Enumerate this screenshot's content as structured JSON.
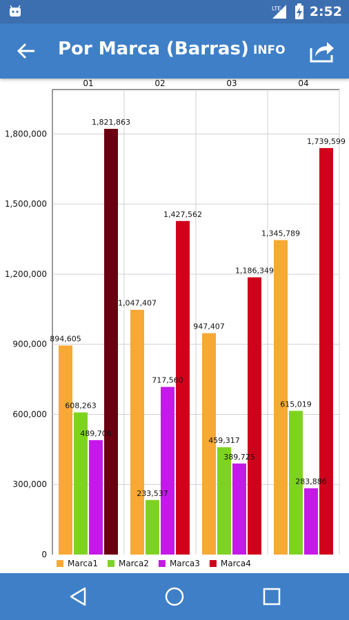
{
  "status_bar": {
    "network": "LTE",
    "time": "2:52"
  },
  "app_bar": {
    "title": "Por Marca (Barras)",
    "info_label": "INFO"
  },
  "colors": {
    "status_bar": "#3c6fb0",
    "app_bar": "#3f7fc7",
    "grid": "#d0d0d0"
  },
  "icons": {
    "back": "arrow-back-icon",
    "share": "share-icon",
    "nav_back": "triangle-back-icon",
    "nav_home": "circle-home-icon",
    "nav_recents": "square-recents-icon"
  },
  "chart_data": {
    "type": "bar",
    "categories": [
      "01",
      "02",
      "03",
      "04"
    ],
    "series": [
      {
        "name": "Marca1",
        "color": "#f7a835",
        "values": [
          894605,
          1047407,
          947407,
          1345789
        ],
        "labels": [
          "894,605",
          "1,047,407",
          "947,407",
          "1,345,789"
        ]
      },
      {
        "name": "Marca2",
        "color": "#7ed321",
        "values": [
          608263,
          233537,
          459317,
          615019
        ],
        "labels": [
          "608,263",
          "233,537",
          "459,317",
          "615,019"
        ]
      },
      {
        "name": "Marca3",
        "color": "#c41ae8",
        "values": [
          489706,
          717560,
          389725,
          283886
        ],
        "labels": [
          "489,706",
          "717,560",
          "389,725",
          "283,886"
        ]
      },
      {
        "name": "Marca4",
        "color": "#d0021b",
        "values": [
          1821863,
          1427562,
          1186349,
          1739599
        ],
        "labels": [
          "1,821,863",
          "1,427,562",
          "1,186,349",
          "1,739,599"
        ]
      }
    ],
    "highlight": {
      "series": 3,
      "category": 0,
      "color": "#6b0010"
    },
    "yticks": [
      0,
      300000,
      600000,
      900000,
      1200000,
      1500000,
      1800000
    ],
    "ytick_labels": [
      "0",
      "300,000",
      "600,000",
      "900,000",
      "1,200,000",
      "1,500,000",
      "1,800,000"
    ],
    "ylim": [
      0,
      1990000
    ],
    "xaxis_position": "top",
    "legend_position": "bottom-left",
    "grid": true
  }
}
